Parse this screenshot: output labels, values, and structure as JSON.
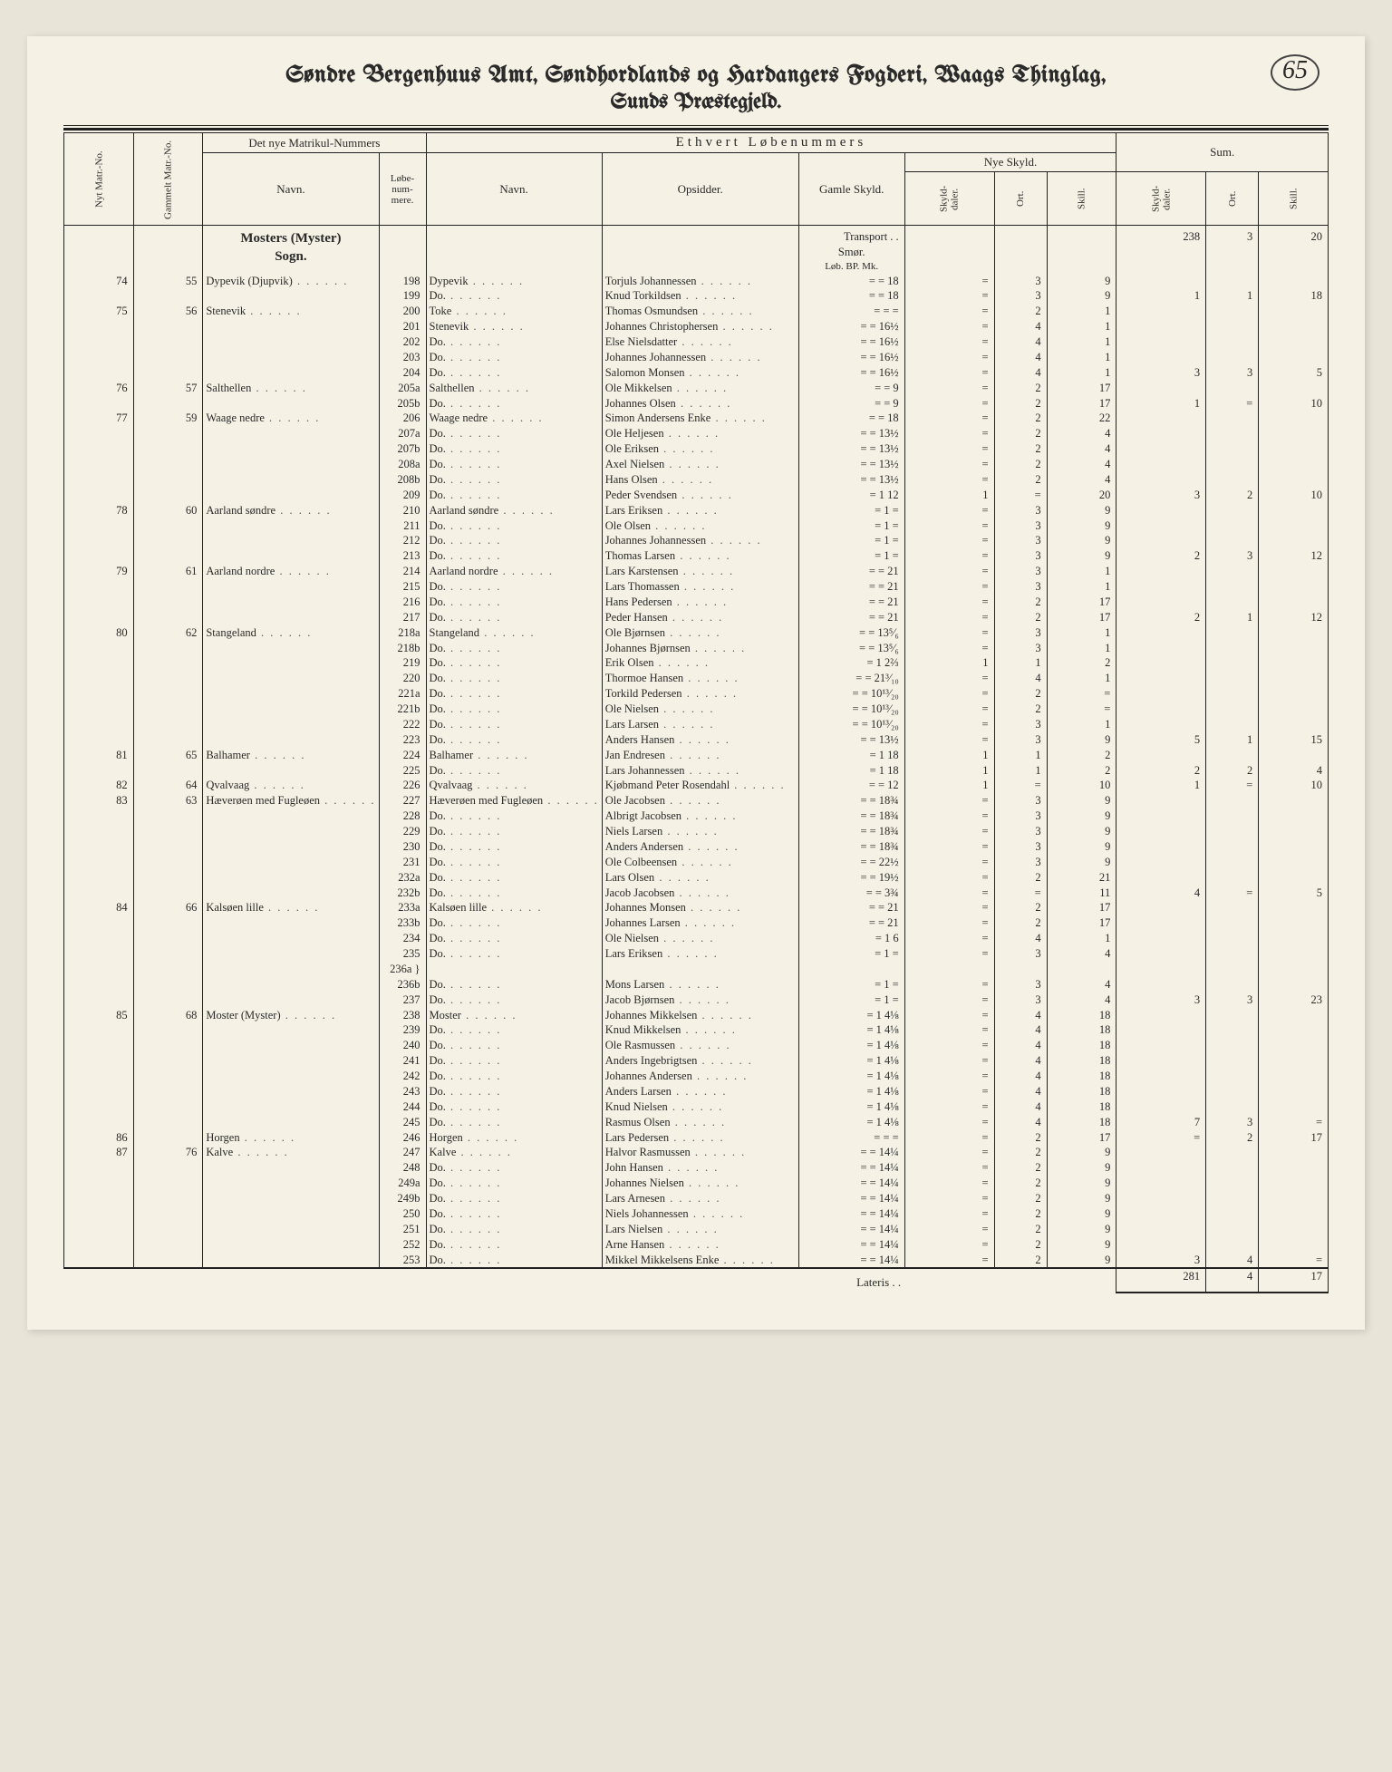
{
  "page_number": "65",
  "title_line1": "Søndre Bergenhuus Amt, Søndhordlands og Hardangers Fogderi, Waags Thinglag,",
  "title_line2": "Sunds Præstegjeld.",
  "headers": {
    "nyt_matr": "Nyt Matr.-No.",
    "gammelt_matr": "Gammelt Matr.-No.",
    "nye_matrikul": "Det nye Matrikul-Nummers",
    "navn": "Navn.",
    "lobenum": "Løbe-\nnum-\nmere.",
    "ethvert": "Ethvert Løbenummers",
    "navn2": "Navn.",
    "opsidder": "Opsidder.",
    "gamle_skyld": "Gamle Skyld.",
    "nye_skyld": "Nye Skyld.",
    "skylddaler": "Skyld-\ndaler.",
    "ort": "Ort.",
    "skill": "Skill.",
    "sum": "Sum."
  },
  "sogn_header": "Mosters (Myster)\nSogn.",
  "transport_label": "Transport . .",
  "smor_label": "Smør.",
  "lob_label": "Løb. BP. Mk.",
  "transport_sum": {
    "daler": "238",
    "ort": "3",
    "skill": "20"
  },
  "rows": [
    {
      "nm": "74",
      "gm": "55",
      "navn": "Dypevik (Djupvik)",
      "ln": "198",
      "navn2": "Dypevik",
      "ops": "Torjuls Johannessen",
      "gs": "= = 18",
      "d": "=",
      "o": "3",
      "s": "9"
    },
    {
      "ln": "199",
      "navn2": "Do.",
      "ops": "Knud Torkildsen",
      "gs": "= = 18",
      "d": "=",
      "o": "3",
      "s": "9",
      "sd": "1",
      "so": "1",
      "ss": "18"
    },
    {
      "nm": "75",
      "gm": "56",
      "navn": "Stenevik",
      "ln": "200",
      "navn2": "Toke",
      "ops": "Thomas Osmundsen",
      "gs": "= = =",
      "d": "=",
      "o": "2",
      "s": "1"
    },
    {
      "ln": "201",
      "navn2": "Stenevik",
      "ops": "Johannes Christophersen",
      "gs": "= = 16½",
      "d": "=",
      "o": "4",
      "s": "1"
    },
    {
      "ln": "202",
      "navn2": "Do.",
      "ops": "Else Nielsdatter",
      "gs": "= = 16½",
      "d": "=",
      "o": "4",
      "s": "1"
    },
    {
      "ln": "203",
      "navn2": "Do.",
      "ops": "Johannes Johannessen",
      "gs": "= = 16½",
      "d": "=",
      "o": "4",
      "s": "1"
    },
    {
      "ln": "204",
      "navn2": "Do.",
      "ops": "Salomon Monsen",
      "gs": "= = 16½",
      "d": "=",
      "o": "4",
      "s": "1",
      "sd": "3",
      "so": "3",
      "ss": "5"
    },
    {
      "nm": "76",
      "gm": "57",
      "navn": "Salthellen",
      "ln": "205a",
      "navn2": "Salthellen",
      "ops": "Ole Mikkelsen",
      "gs": "= = 9",
      "d": "=",
      "o": "2",
      "s": "17"
    },
    {
      "ln": "205b",
      "navn2": "Do.",
      "ops": "Johannes Olsen",
      "gs": "= = 9",
      "d": "=",
      "o": "2",
      "s": "17",
      "sd": "1",
      "so": "=",
      "ss": "10"
    },
    {
      "nm": "77",
      "gm": "59",
      "navn": "Waage nedre",
      "ln": "206",
      "navn2": "Waage nedre",
      "ops": "Simon Andersens Enke",
      "gs": "= = 18",
      "d": "=",
      "o": "2",
      "s": "22"
    },
    {
      "ln": "207a",
      "navn2": "Do.",
      "ops": "Ole Heljesen",
      "gs": "= = 13½",
      "d": "=",
      "o": "2",
      "s": "4"
    },
    {
      "ln": "207b",
      "navn2": "Do.",
      "ops": "Ole Eriksen",
      "gs": "= = 13½",
      "d": "=",
      "o": "2",
      "s": "4"
    },
    {
      "ln": "208a",
      "navn2": "Do.",
      "ops": "Axel Nielsen",
      "gs": "= = 13½",
      "d": "=",
      "o": "2",
      "s": "4"
    },
    {
      "ln": "208b",
      "navn2": "Do.",
      "ops": "Hans Olsen",
      "gs": "= = 13½",
      "d": "=",
      "o": "2",
      "s": "4"
    },
    {
      "ln": "209",
      "navn2": "Do.",
      "ops": "Peder Svendsen",
      "gs": "= 1 12",
      "d": "1",
      "o": "=",
      "s": "20",
      "sd": "3",
      "so": "2",
      "ss": "10"
    },
    {
      "nm": "78",
      "gm": "60",
      "navn": "Aarland søndre",
      "ln": "210",
      "navn2": "Aarland søndre",
      "ops": "Lars Eriksen",
      "gs": "= 1 =",
      "d": "=",
      "o": "3",
      "s": "9"
    },
    {
      "ln": "211",
      "navn2": "Do.",
      "ops": "Ole Olsen",
      "gs": "= 1 =",
      "d": "=",
      "o": "3",
      "s": "9"
    },
    {
      "ln": "212",
      "navn2": "Do.",
      "ops": "Johannes Johannessen",
      "gs": "= 1 =",
      "d": "=",
      "o": "3",
      "s": "9"
    },
    {
      "ln": "213",
      "navn2": "Do.",
      "ops": "Thomas Larsen",
      "gs": "= 1 =",
      "d": "=",
      "o": "3",
      "s": "9",
      "sd": "2",
      "so": "3",
      "ss": "12"
    },
    {
      "nm": "79",
      "gm": "61",
      "navn": "Aarland nordre",
      "ln": "214",
      "navn2": "Aarland nordre",
      "ops": "Lars Karstensen",
      "gs": "= = 21",
      "d": "=",
      "o": "3",
      "s": "1"
    },
    {
      "ln": "215",
      "navn2": "Do.",
      "ops": "Lars Thomassen",
      "gs": "= = 21",
      "d": "=",
      "o": "3",
      "s": "1"
    },
    {
      "ln": "216",
      "navn2": "Do.",
      "ops": "Hans Pedersen",
      "gs": "= = 21",
      "d": "=",
      "o": "2",
      "s": "17"
    },
    {
      "ln": "217",
      "navn2": "Do.",
      "ops": "Peder Hansen",
      "gs": "= = 21",
      "d": "=",
      "o": "2",
      "s": "17",
      "sd": "2",
      "so": "1",
      "ss": "12"
    },
    {
      "nm": "80",
      "gm": "62",
      "navn": "Stangeland",
      "ln": "218a",
      "navn2": "Stangeland",
      "ops": "Ole Bjørnsen",
      "gs": "= = 13⁵⁄₆",
      "d": "=",
      "o": "3",
      "s": "1"
    },
    {
      "ln": "218b",
      "navn2": "Do.",
      "ops": "Johannes Bjørnsen",
      "gs": "= = 13⁵⁄₆",
      "d": "=",
      "o": "3",
      "s": "1"
    },
    {
      "ln": "219",
      "navn2": "Do.",
      "ops": "Erik Olsen",
      "gs": "= 1 2⅔",
      "d": "1",
      "o": "1",
      "s": "2"
    },
    {
      "ln": "220",
      "navn2": "Do.",
      "ops": "Thormoe Hansen",
      "gs": "= = 21³⁄₁₀",
      "d": "=",
      "o": "4",
      "s": "1"
    },
    {
      "ln": "221a",
      "navn2": "Do.",
      "ops": "Torkild Pedersen",
      "gs": "= = 10¹³⁄₂₀",
      "d": "=",
      "o": "2",
      "s": "="
    },
    {
      "ln": "221b",
      "navn2": "Do.",
      "ops": "Ole Nielsen",
      "gs": "= = 10¹³⁄₂₀",
      "d": "=",
      "o": "2",
      "s": "="
    },
    {
      "ln": "222",
      "navn2": "Do.",
      "ops": "Lars Larsen",
      "gs": "= = 10¹³⁄₂₀",
      "d": "=",
      "o": "3",
      "s": "1"
    },
    {
      "ln": "223",
      "navn2": "Do.",
      "ops": "Anders Hansen",
      "gs": "= = 13½",
      "d": "=",
      "o": "3",
      "s": "9",
      "sd": "5",
      "so": "1",
      "ss": "15"
    },
    {
      "nm": "81",
      "gm": "65",
      "navn": "Balhamer",
      "ln": "224",
      "navn2": "Balhamer",
      "ops": "Jan Endresen",
      "gs": "= 1 18",
      "d": "1",
      "o": "1",
      "s": "2"
    },
    {
      "ln": "225",
      "navn2": "Do.",
      "ops": "Lars Johannessen",
      "gs": "= 1 18",
      "d": "1",
      "o": "1",
      "s": "2",
      "sd": "2",
      "so": "2",
      "ss": "4"
    },
    {
      "nm": "82",
      "gm": "64",
      "navn": "Qvalvaag",
      "ln": "226",
      "navn2": "Qvalvaag",
      "ops": "Kjøbmand Peter Rosendahl",
      "gs": "= = 12",
      "d": "1",
      "o": "=",
      "s": "10",
      "sd": "1",
      "so": "=",
      "ss": "10"
    },
    {
      "nm": "83",
      "gm": "63",
      "navn": "Hæverøen med Fugleøen",
      "ln": "227",
      "navn2": "Hæverøen med Fugleøen",
      "ops": "Ole Jacobsen",
      "gs": "= = 18¾",
      "d": "=",
      "o": "3",
      "s": "9"
    },
    {
      "ln": "228",
      "navn2": "Do.",
      "ops": "Albrigt Jacobsen",
      "gs": "= = 18¾",
      "d": "=",
      "o": "3",
      "s": "9"
    },
    {
      "ln": "229",
      "navn2": "Do.",
      "ops": "Niels Larsen",
      "gs": "= = 18¾",
      "d": "=",
      "o": "3",
      "s": "9"
    },
    {
      "ln": "230",
      "navn2": "Do.",
      "ops": "Anders Andersen",
      "gs": "= = 18¾",
      "d": "=",
      "o": "3",
      "s": "9"
    },
    {
      "ln": "231",
      "navn2": "Do.",
      "ops": "Ole Colbeensen",
      "gs": "= = 22½",
      "d": "=",
      "o": "3",
      "s": "9"
    },
    {
      "ln": "232a",
      "navn2": "Do.",
      "ops": "Lars Olsen",
      "gs": "= = 19½",
      "d": "=",
      "o": "2",
      "s": "21"
    },
    {
      "ln": "232b",
      "navn2": "Do.",
      "ops": "Jacob Jacobsen",
      "gs": "= = 3¾",
      "d": "=",
      "o": "=",
      "s": "11",
      "sd": "4",
      "so": "=",
      "ss": "5"
    },
    {
      "nm": "84",
      "gm": "66",
      "navn": "Kalsøen lille",
      "ln": "233a",
      "navn2": "Kalsøen lille",
      "ops": "Johannes Monsen",
      "gs": "= = 21",
      "d": "=",
      "o": "2",
      "s": "17"
    },
    {
      "ln": "233b",
      "navn2": "Do.",
      "ops": "Johannes Larsen",
      "gs": "= = 21",
      "d": "=",
      "o": "2",
      "s": "17"
    },
    {
      "ln": "234",
      "navn2": "Do.",
      "ops": "Ole Nielsen",
      "gs": "= 1 6",
      "d": "=",
      "o": "4",
      "s": "1"
    },
    {
      "ln": "235",
      "navn2": "Do.",
      "ops": "Lars Eriksen",
      "gs": "= 1 =",
      "d": "=",
      "o": "3",
      "s": "4"
    },
    {
      "ln": "236a }"
    },
    {
      "ln": "236b",
      "navn2": "Do.",
      "ops": "Mons Larsen",
      "gs": "= 1 =",
      "d": "=",
      "o": "3",
      "s": "4"
    },
    {
      "ln": "237",
      "navn2": "Do.",
      "ops": "Jacob Bjørnsen",
      "gs": "= 1 =",
      "d": "=",
      "o": "3",
      "s": "4",
      "sd": "3",
      "so": "3",
      "ss": "23"
    },
    {
      "nm": "85",
      "gm": "68",
      "navn": "Moster (Myster)",
      "ln": "238",
      "navn2": "Moster",
      "ops": "Johannes Mikkelsen",
      "gs": "= 1 4⅛",
      "d": "=",
      "o": "4",
      "s": "18"
    },
    {
      "ln": "239",
      "navn2": "Do.",
      "ops": "Knud Mikkelsen",
      "gs": "= 1 4⅛",
      "d": "=",
      "o": "4",
      "s": "18"
    },
    {
      "ln": "240",
      "navn2": "Do.",
      "ops": "Ole Rasmussen",
      "gs": "= 1 4⅛",
      "d": "=",
      "o": "4",
      "s": "18"
    },
    {
      "ln": "241",
      "navn2": "Do.",
      "ops": "Anders Ingebrigtsen",
      "gs": "= 1 4⅛",
      "d": "=",
      "o": "4",
      "s": "18"
    },
    {
      "ln": "242",
      "navn2": "Do.",
      "ops": "Johannes Andersen",
      "gs": "= 1 4⅛",
      "d": "=",
      "o": "4",
      "s": "18"
    },
    {
      "ln": "243",
      "navn2": "Do.",
      "ops": "Anders Larsen",
      "gs": "= 1 4⅛",
      "d": "=",
      "o": "4",
      "s": "18"
    },
    {
      "ln": "244",
      "navn2": "Do.",
      "ops": "Knud Nielsen",
      "gs": "= 1 4⅛",
      "d": "=",
      "o": "4",
      "s": "18"
    },
    {
      "ln": "245",
      "navn2": "Do.",
      "ops": "Rasmus Olsen",
      "gs": "= 1 4⅛",
      "d": "=",
      "o": "4",
      "s": "18",
      "sd": "7",
      "so": "3",
      "ss": "="
    },
    {
      "nm": "86",
      "gm": "",
      "navn": "Horgen",
      "ln": "246",
      "navn2": "Horgen",
      "ops": "Lars Pedersen",
      "gs": "= = =",
      "d": "=",
      "o": "2",
      "s": "17",
      "sd": "=",
      "so": "2",
      "ss": "17"
    },
    {
      "nm": "87",
      "gm": "76",
      "navn": "Kalve",
      "ln": "247",
      "navn2": "Kalve",
      "ops": "Halvor Rasmussen",
      "gs": "= = 14¼",
      "d": "=",
      "o": "2",
      "s": "9"
    },
    {
      "ln": "248",
      "navn2": "Do.",
      "ops": "John Hansen",
      "gs": "= = 14¼",
      "d": "=",
      "o": "2",
      "s": "9"
    },
    {
      "ln": "249a",
      "navn2": "Do.",
      "ops": "Johannes Nielsen",
      "gs": "= = 14¼",
      "d": "=",
      "o": "2",
      "s": "9"
    },
    {
      "ln": "249b",
      "navn2": "Do.",
      "ops": "Lars Arnesen",
      "gs": "= = 14¼",
      "d": "=",
      "o": "2",
      "s": "9"
    },
    {
      "ln": "250",
      "navn2": "Do.",
      "ops": "Niels Johannessen",
      "gs": "= = 14¼",
      "d": "=",
      "o": "2",
      "s": "9"
    },
    {
      "ln": "251",
      "navn2": "Do.",
      "ops": "Lars Nielsen",
      "gs": "= = 14¼",
      "d": "=",
      "o": "2",
      "s": "9"
    },
    {
      "ln": "252",
      "navn2": "Do.",
      "ops": "Arne Hansen",
      "gs": "= = 14¼",
      "d": "=",
      "o": "2",
      "s": "9"
    },
    {
      "ln": "253",
      "navn2": "Do.",
      "ops": "Mikkel Mikkelsens Enke",
      "gs": "= = 14¼",
      "d": "=",
      "o": "2",
      "s": "9",
      "sd": "3",
      "so": "4",
      "ss": "="
    }
  ],
  "lateris_label": "Lateris . .",
  "lateris_sum": {
    "daler": "281",
    "ort": "4",
    "skill": "17"
  }
}
